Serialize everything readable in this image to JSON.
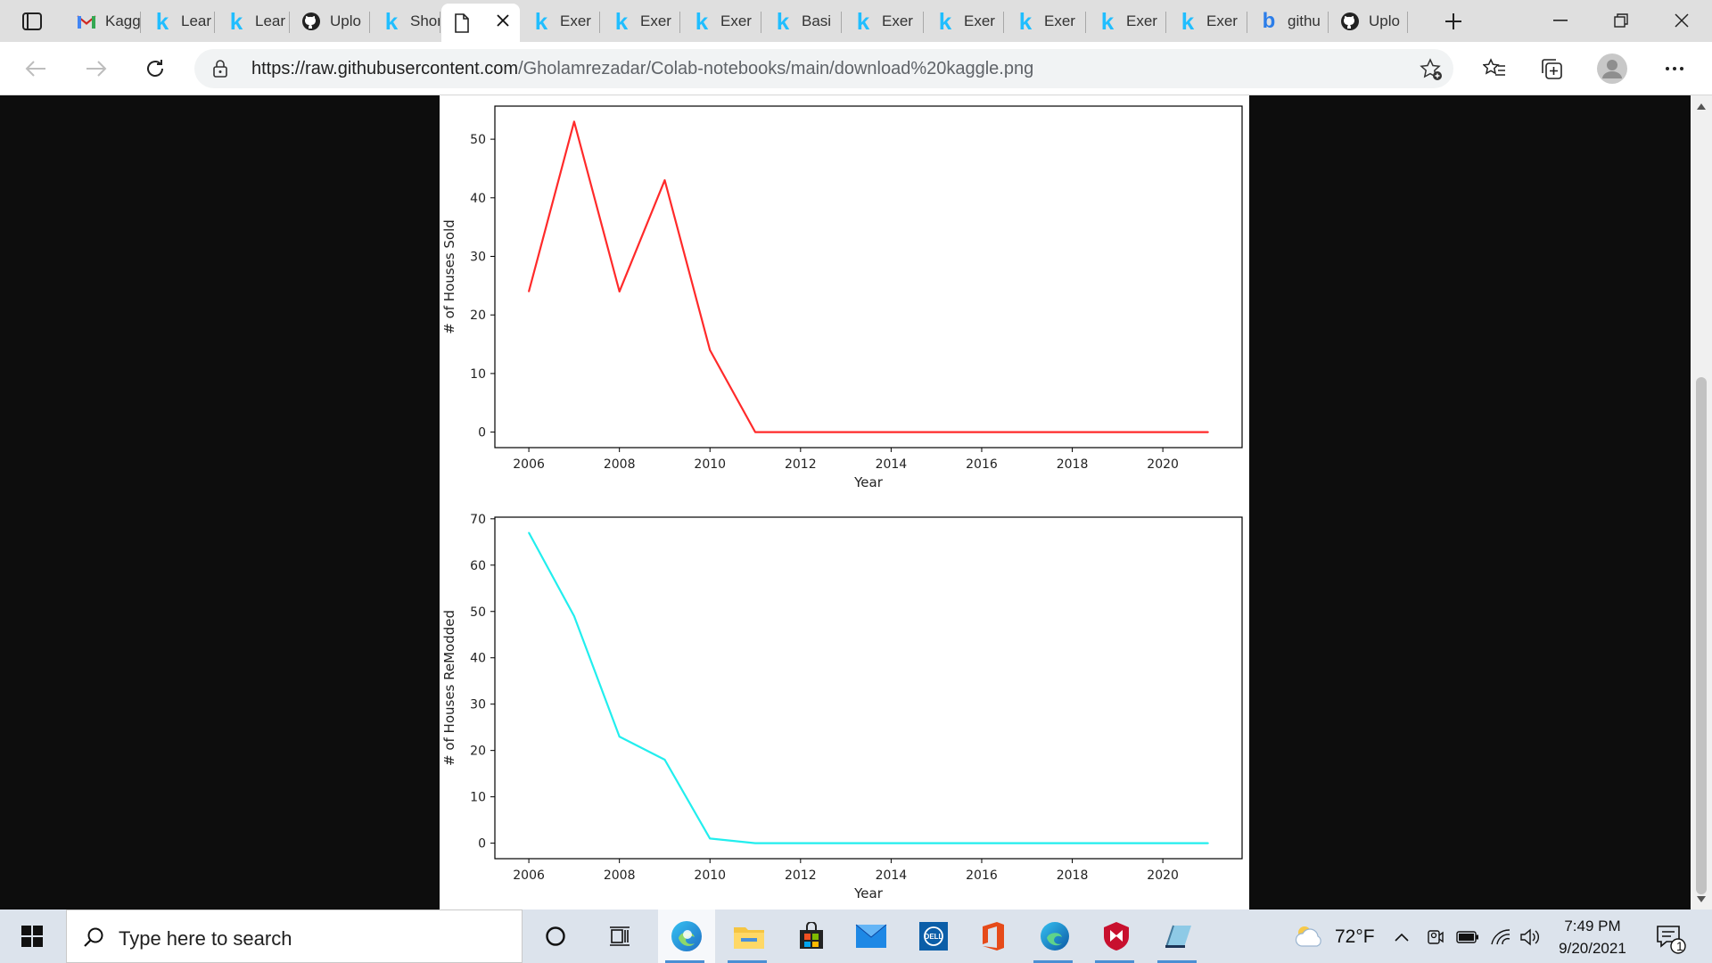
{
  "browser": {
    "tabs": [
      {
        "title": "Kagg",
        "icon": "gmail-icon"
      },
      {
        "title": "Lear",
        "icon": "kaggle-icon"
      },
      {
        "title": "Lear",
        "icon": "kaggle-icon"
      },
      {
        "title": "Uplo",
        "icon": "github-icon"
      },
      {
        "title": "Shor",
        "icon": "kaggle-icon"
      },
      {
        "title": "",
        "icon": "document-icon",
        "active": true
      },
      {
        "title": "Exer",
        "icon": "kaggle-icon"
      },
      {
        "title": "Exer",
        "icon": "kaggle-icon"
      },
      {
        "title": "Exer",
        "icon": "kaggle-icon"
      },
      {
        "title": "Basi",
        "icon": "kaggle-icon"
      },
      {
        "title": "Exer",
        "icon": "kaggle-icon"
      },
      {
        "title": "Exer",
        "icon": "kaggle-icon"
      },
      {
        "title": "Exer",
        "icon": "kaggle-icon"
      },
      {
        "title": "Exer",
        "icon": "kaggle-icon"
      },
      {
        "title": "Exer",
        "icon": "kaggle-icon"
      },
      {
        "title": "githu",
        "icon": "bing-icon"
      },
      {
        "title": "Uplo",
        "icon": "github-icon"
      }
    ],
    "url_host": "https://raw.githubusercontent.com",
    "url_path": "/Gholamrezadar/Colab-notebooks/main/download%20kaggle.png"
  },
  "chart_data": [
    {
      "type": "line",
      "xlabel": "Year",
      "ylabel": "# of Houses Sold",
      "x": [
        2006,
        2007,
        2008,
        2009,
        2010,
        2011,
        2012,
        2013,
        2014,
        2015,
        2016,
        2017,
        2018,
        2019,
        2020,
        2021
      ],
      "values": [
        24,
        53,
        24,
        43,
        14,
        0,
        0,
        0,
        0,
        0,
        0,
        0,
        0,
        0,
        0,
        0
      ],
      "xticks": [
        "2006",
        "2008",
        "2010",
        "2012",
        "2014",
        "2016",
        "2018",
        "2020"
      ],
      "yticks": [
        "0",
        "10",
        "20",
        "30",
        "40",
        "50"
      ],
      "xlim": [
        2005.25,
        2021.75
      ],
      "ylim": [
        -2.65,
        55.65
      ],
      "color": "#ff2a2a",
      "grid": false
    },
    {
      "type": "line",
      "xlabel": "Year",
      "ylabel": "# of Houses ReModded",
      "x": [
        2006,
        2007,
        2008,
        2009,
        2010,
        2011,
        2012,
        2013,
        2014,
        2015,
        2016,
        2017,
        2018,
        2019,
        2020,
        2021
      ],
      "values": [
        67,
        49,
        23,
        18,
        1,
        0,
        0,
        0,
        0,
        0,
        0,
        0,
        0,
        0,
        0,
        0
      ],
      "xticks": [
        "2006",
        "2008",
        "2010",
        "2012",
        "2014",
        "2016",
        "2018",
        "2020"
      ],
      "yticks": [
        "0",
        "10",
        "20",
        "30",
        "40",
        "50",
        "60",
        "70"
      ],
      "xlim": [
        2005.25,
        2021.75
      ],
      "ylim": [
        -3.35,
        70.35
      ],
      "color": "#22eeee",
      "grid": false
    }
  ],
  "taskbar": {
    "search_placeholder": "Type here to search",
    "temperature": "72°F",
    "time": "7:49 PM",
    "date": "9/20/2021",
    "notification_count": "1"
  }
}
